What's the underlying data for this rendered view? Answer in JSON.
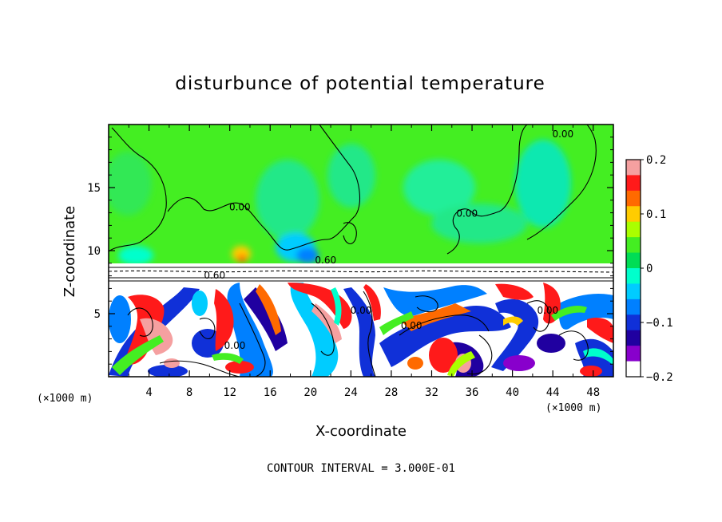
{
  "chart_data": {
    "type": "heatmap",
    "title": "disturbunce of potential temperature",
    "xlabel": "X-coordinate",
    "ylabel": "Z-coordinate",
    "x_unit": "(×1000 m)",
    "y_unit": "(×1000 m)",
    "xlim": [
      0,
      50
    ],
    "ylim": [
      0,
      20
    ],
    "x_ticks": [
      4,
      8,
      12,
      16,
      20,
      24,
      28,
      32,
      36,
      40,
      44,
      48
    ],
    "y_ticks": [
      5,
      10,
      15
    ],
    "colorbar": {
      "min": -0.2,
      "max": 0.2,
      "ticks": [
        0.2,
        0.1,
        0,
        -0.1,
        -0.2
      ],
      "tick_labels": [
        "0.2",
        "0.1",
        "0",
        "−0.1",
        "−0.2"
      ],
      "colors": [
        "#f5a0a0",
        "#ff1a1a",
        "#ff6a00",
        "#ffcc00",
        "#aaff00",
        "#44ee22",
        "#00dd55",
        "#00ffcc",
        "#00ccff",
        "#0080ff",
        "#1030d8",
        "#2000a0",
        "#8800cc",
        "#ffffff"
      ]
    },
    "contour_labels": [
      {
        "text": "0.00",
        "x": 13.0,
        "y": 13.2
      },
      {
        "text": "0.00",
        "x": 35.5,
        "y": 12.7
      },
      {
        "text": "0.00",
        "x": 45.0,
        "y": 19.0
      },
      {
        "text": "0.60",
        "x": 21.5,
        "y": 9.0
      },
      {
        "text": "0.60",
        "x": 10.5,
        "y": 7.8
      },
      {
        "text": "0.00",
        "x": 12.5,
        "y": 2.2
      },
      {
        "text": "0.00",
        "x": 25.0,
        "y": 5.0
      },
      {
        "text": "0.00",
        "x": 30.0,
        "y": 3.8
      },
      {
        "text": "0.00",
        "x": 43.5,
        "y": 5.0
      }
    ],
    "regions": [
      {
        "layer": "upper",
        "z_range": [
          9,
          20
        ],
        "dominant_value": 0.0,
        "color_band": "green"
      },
      {
        "layer": "inversion",
        "z_range": [
          7.5,
          9
        ],
        "dominant_value": 0.6,
        "color_band": "above-scale"
      },
      {
        "layer": "lower",
        "z_range": [
          0,
          7.5
        ],
        "description": "mixed positive and negative anomalies"
      }
    ],
    "grid": false
  },
  "footer": {
    "contour_interval": "CONTOUR INTERVAL = 3.000E-01"
  }
}
